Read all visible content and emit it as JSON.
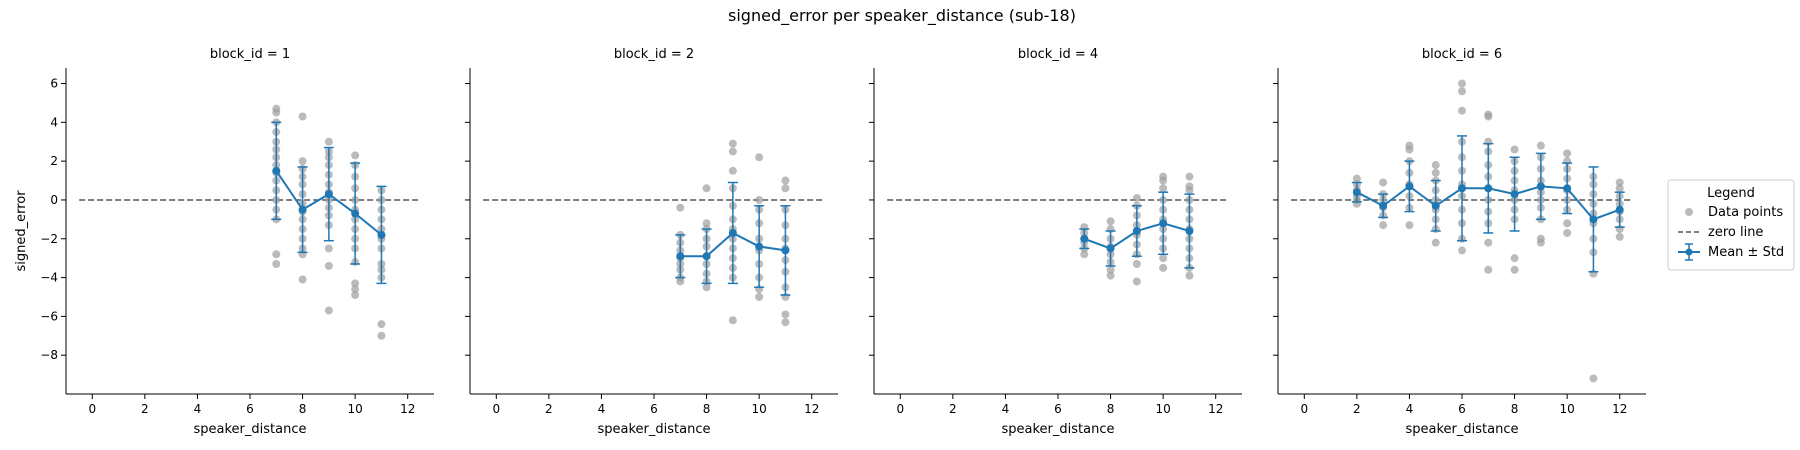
{
  "chart_data": {
    "type": "scatter",
    "title": "signed_error per speaker_distance (sub-18)",
    "xlabel": "speaker_distance",
    "ylabel": "signed_error",
    "xlim": [
      -1,
      13
    ],
    "ylim": [
      -10,
      6.8
    ],
    "xticks": [
      0,
      2,
      4,
      6,
      8,
      10,
      12
    ],
    "yticks": [
      6,
      4,
      2,
      0,
      -2,
      -4,
      -6,
      -8
    ],
    "colors": {
      "points": "#9e9e9e",
      "mean": "#1f77b4",
      "zero": "#555555"
    },
    "legend": {
      "title": "Legend",
      "placement": "right",
      "items": [
        {
          "label": "Data points",
          "kind": "points"
        },
        {
          "label": "zero line",
          "kind": "dashed"
        },
        {
          "label": "Mean ± Std",
          "kind": "errorbar"
        }
      ]
    },
    "panels": [
      {
        "title": "block_id = 1",
        "mean": [
          {
            "x": 7,
            "mean": 1.5,
            "std": 2.5
          },
          {
            "x": 8,
            "mean": -0.5,
            "std": 2.2
          },
          {
            "x": 9,
            "mean": 0.3,
            "std": 2.4
          },
          {
            "x": 10,
            "mean": -0.7,
            "std": 2.6
          },
          {
            "x": 11,
            "mean": -1.8,
            "std": 2.5
          }
        ],
        "points": [
          {
            "x": 7,
            "y": [
              4.7,
              4.5,
              4.0,
              3.5,
              3.0,
              2.6,
              2.2,
              1.8,
              1.4,
              1.0,
              0.5,
              0.0,
              -0.5,
              -1.0,
              -2.8,
              -3.3
            ]
          },
          {
            "x": 8,
            "y": [
              4.3,
              2.0,
              1.6,
              1.2,
              0.8,
              0.3,
              -0.2,
              -0.6,
              -1.0,
              -1.5,
              -2.0,
              -2.5,
              -2.8,
              -4.1
            ]
          },
          {
            "x": 9,
            "y": [
              3.0,
              2.5,
              2.2,
              1.8,
              1.3,
              0.8,
              0.4,
              0.0,
              -0.4,
              -0.8,
              -1.3,
              -2.5,
              -3.4,
              -5.7
            ]
          },
          {
            "x": 10,
            "y": [
              2.3,
              1.8,
              1.2,
              0.6,
              0.0,
              -0.5,
              -1.0,
              -1.5,
              -2.0,
              -2.5,
              -3.2,
              -4.3,
              -4.6,
              -4.9
            ]
          },
          {
            "x": 11,
            "y": [
              0.5,
              0.0,
              -0.5,
              -1.0,
              -1.5,
              -2.0,
              -2.5,
              -3.3,
              -3.6,
              -4.0,
              -6.4,
              -7.0
            ]
          }
        ]
      },
      {
        "title": "block_id = 2",
        "mean": [
          {
            "x": 7,
            "mean": -2.9,
            "std": 1.1
          },
          {
            "x": 8,
            "mean": -2.9,
            "std": 1.4
          },
          {
            "x": 9,
            "mean": -1.7,
            "std": 2.6
          },
          {
            "x": 10,
            "mean": -2.4,
            "std": 2.1
          },
          {
            "x": 11,
            "mean": -2.6,
            "std": 2.3
          }
        ],
        "points": [
          {
            "x": 7,
            "y": [
              -0.4,
              -1.8,
              -2.2,
              -2.6,
              -3.0,
              -3.3,
              -3.6,
              -4.0,
              -4.2
            ]
          },
          {
            "x": 8,
            "y": [
              0.6,
              -1.2,
              -1.5,
              -2.0,
              -2.4,
              -2.9,
              -3.3,
              -3.8,
              -4.2,
              -4.5
            ]
          },
          {
            "x": 9,
            "y": [
              2.9,
              2.5,
              1.5,
              0.6,
              -0.3,
              -1.0,
              -1.5,
              -2.0,
              -2.5,
              -3.0,
              -3.5,
              -4.0,
              -6.2
            ]
          },
          {
            "x": 10,
            "y": [
              2.2,
              0.0,
              -0.5,
              -1.2,
              -2.0,
              -2.6,
              -3.3,
              -4.0,
              -4.6,
              -5.0
            ]
          },
          {
            "x": 11,
            "y": [
              1.0,
              0.6,
              -0.5,
              -1.3,
              -2.0,
              -2.5,
              -3.1,
              -3.7,
              -4.5,
              -5.0,
              -5.9,
              -6.3
            ]
          }
        ]
      },
      {
        "title": "block_id = 4",
        "mean": [
          {
            "x": 7,
            "mean": -2.0,
            "std": 0.5
          },
          {
            "x": 8,
            "mean": -2.5,
            "std": 0.9
          },
          {
            "x": 9,
            "mean": -1.6,
            "std": 1.3
          },
          {
            "x": 10,
            "mean": -1.2,
            "std": 1.6
          },
          {
            "x": 11,
            "mean": -1.6,
            "std": 1.9
          }
        ],
        "points": [
          {
            "x": 7,
            "y": [
              -1.4,
              -1.7,
              -2.0,
              -2.2,
              -2.5,
              -2.8
            ]
          },
          {
            "x": 8,
            "y": [
              -1.1,
              -1.5,
              -2.0,
              -2.4,
              -2.8,
              -3.2,
              -3.6,
              -3.9
            ]
          },
          {
            "x": 9,
            "y": [
              0.1,
              -0.3,
              -0.8,
              -1.3,
              -1.8,
              -2.3,
              -2.8,
              -3.3,
              -4.2
            ]
          },
          {
            "x": 10,
            "y": [
              1.2,
              1.0,
              0.6,
              0.0,
              -0.5,
              -1.0,
              -1.5,
              -2.0,
              -2.5,
              -3.0,
              -3.5
            ]
          },
          {
            "x": 11,
            "y": [
              1.2,
              0.7,
              0.5,
              0.0,
              -0.5,
              -1.0,
              -1.5,
              -2.0,
              -2.5,
              -3.0,
              -3.5,
              -3.9
            ]
          }
        ]
      },
      {
        "title": "block_id = 6",
        "mean": [
          {
            "x": 2,
            "mean": 0.4,
            "std": 0.5
          },
          {
            "x": 3,
            "mean": -0.3,
            "std": 0.6
          },
          {
            "x": 4,
            "mean": 0.7,
            "std": 1.3
          },
          {
            "x": 5,
            "mean": -0.3,
            "std": 1.3
          },
          {
            "x": 6,
            "mean": 0.6,
            "std": 2.7
          },
          {
            "x": 7,
            "mean": 0.6,
            "std": 2.3
          },
          {
            "x": 8,
            "mean": 0.3,
            "std": 1.9
          },
          {
            "x": 9,
            "mean": 0.7,
            "std": 1.7
          },
          {
            "x": 10,
            "mean": 0.6,
            "std": 1.3
          },
          {
            "x": 11,
            "mean": -1.0,
            "std": 2.7
          },
          {
            "x": 12,
            "mean": -0.5,
            "std": 0.9
          }
        ],
        "points": [
          {
            "x": 2,
            "y": [
              1.1,
              0.8,
              0.5,
              0.2,
              0.0,
              -0.2
            ]
          },
          {
            "x": 3,
            "y": [
              0.9,
              0.3,
              0.0,
              -0.4,
              -0.8,
              -1.3
            ]
          },
          {
            "x": 4,
            "y": [
              2.8,
              2.6,
              2.0,
              1.4,
              0.8,
              0.2,
              -0.4,
              -1.3
            ]
          },
          {
            "x": 5,
            "y": [
              1.8,
              1.4,
              1.0,
              0.5,
              0.0,
              -0.5,
              -1.0,
              -1.5,
              -2.2
            ]
          },
          {
            "x": 6,
            "y": [
              6.0,
              5.6,
              4.6,
              3.0,
              2.2,
              1.5,
              0.8,
              0.2,
              -0.5,
              -1.2,
              -2.0,
              -2.6
            ]
          },
          {
            "x": 7,
            "y": [
              4.4,
              4.3,
              3.0,
              2.5,
              1.8,
              1.2,
              0.6,
              0.0,
              -0.6,
              -1.2,
              -2.2,
              -3.6
            ]
          },
          {
            "x": 8,
            "y": [
              2.6,
              2.0,
              1.5,
              1.0,
              0.5,
              0.0,
              -0.5,
              -1.0,
              -3.0,
              -3.6
            ]
          },
          {
            "x": 9,
            "y": [
              2.8,
              2.2,
              1.6,
              1.0,
              0.4,
              0.0,
              -0.4,
              -1.0,
              -2.0,
              -2.2
            ]
          },
          {
            "x": 10,
            "y": [
              2.4,
              2.0,
              1.6,
              1.1,
              0.5,
              0.0,
              -0.5,
              -1.2,
              -1.7
            ]
          },
          {
            "x": 11,
            "y": [
              1.2,
              0.8,
              0.3,
              -0.2,
              -0.7,
              -1.2,
              -2.0,
              -2.7,
              -3.8,
              -9.2
            ]
          },
          {
            "x": 12,
            "y": [
              0.9,
              0.6,
              0.2,
              -0.2,
              -0.6,
              -1.0,
              -1.5,
              -1.9
            ]
          }
        ]
      }
    ]
  }
}
